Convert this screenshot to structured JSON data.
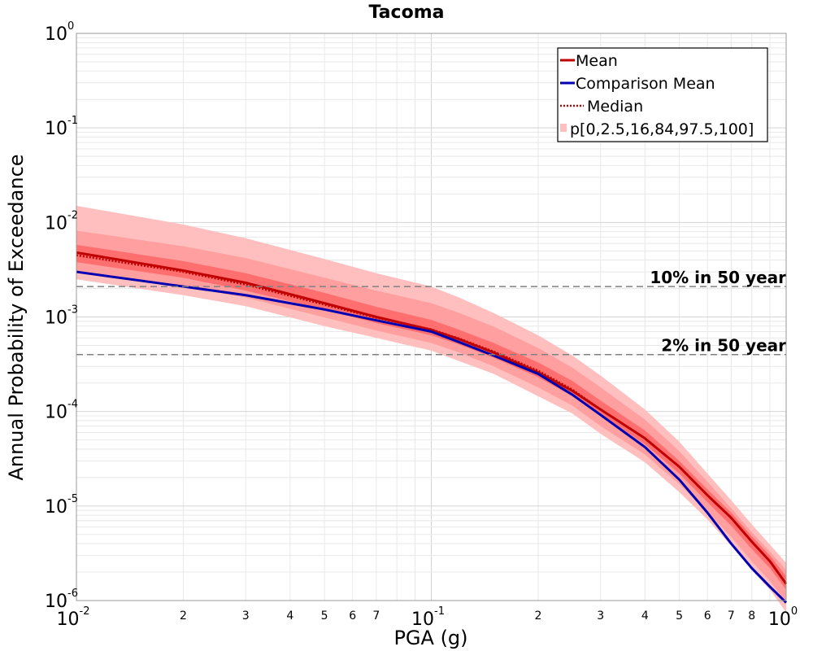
{
  "chart_data": {
    "type": "line",
    "title": "Tacoma",
    "xlabel": "PGA (g)",
    "ylabel": "Annual Probability of Exceedance",
    "x_scale": "log",
    "y_scale": "log",
    "xlim": [
      0.01,
      1.0
    ],
    "ylim": [
      1e-06,
      1.0
    ],
    "grid": true,
    "legend_position": "top-right",
    "x_major_ticks": [
      {
        "value": 0.01,
        "base": "10",
        "exp": "-2"
      },
      {
        "value": 0.1,
        "base": "10",
        "exp": "-1"
      },
      {
        "value": 1.0,
        "base": "10",
        "exp": "0"
      }
    ],
    "x_minor_ticks": [
      {
        "value": 0.02,
        "label": "2"
      },
      {
        "value": 0.03,
        "label": "3"
      },
      {
        "value": 0.04,
        "label": "4"
      },
      {
        "value": 0.05,
        "label": "5"
      },
      {
        "value": 0.06,
        "label": "6"
      },
      {
        "value": 0.07,
        "label": "7"
      },
      {
        "value": 0.2,
        "label": "2"
      },
      {
        "value": 0.3,
        "label": "3"
      },
      {
        "value": 0.4,
        "label": "4"
      },
      {
        "value": 0.5,
        "label": "5"
      },
      {
        "value": 0.6,
        "label": "6"
      },
      {
        "value": 0.7,
        "label": "7"
      },
      {
        "value": 0.8,
        "label": "8"
      }
    ],
    "y_major_ticks": [
      {
        "value": 1.0,
        "base": "10",
        "exp": "0"
      },
      {
        "value": 0.1,
        "base": "10",
        "exp": "-1"
      },
      {
        "value": 0.01,
        "base": "10",
        "exp": "-2"
      },
      {
        "value": 0.001,
        "base": "10",
        "exp": "-3"
      },
      {
        "value": 0.0001,
        "base": "10",
        "exp": "-4"
      },
      {
        "value": 1e-05,
        "base": "10",
        "exp": "-5"
      },
      {
        "value": 1e-06,
        "base": "10",
        "exp": "-6"
      }
    ],
    "x": [
      0.01,
      0.02,
      0.03,
      0.05,
      0.07,
      0.1,
      0.12,
      0.15,
      0.2,
      0.25,
      0.3,
      0.4,
      0.5,
      0.6,
      0.7,
      0.8,
      0.9,
      1.0
    ],
    "series": [
      {
        "name": "Mean",
        "color": "#c00000",
        "style": "solid",
        "values": [
          0.0048,
          0.0031,
          0.0023,
          0.0014,
          0.001,
          0.00073,
          0.00058,
          0.00042,
          0.00026,
          0.000165,
          0.000105,
          5.2e-05,
          2.6e-05,
          1.3e-05,
          7.5e-06,
          4.2e-06,
          2.6e-06,
          1.5e-06
        ]
      },
      {
        "name": "Comparison Mean",
        "color": "#0000b0",
        "style": "solid",
        "values": [
          0.003,
          0.0021,
          0.0017,
          0.0012,
          0.00092,
          0.0007,
          0.00054,
          0.00039,
          0.00025,
          0.00015,
          9.2e-05,
          4.2e-05,
          1.9e-05,
          8.5e-06,
          4e-06,
          2.2e-06,
          1.4e-06,
          9.5e-07
        ]
      },
      {
        "name": "Median",
        "color": "#c00000",
        "style": "dotted",
        "values": [
          0.0045,
          0.003,
          0.0022,
          0.00135,
          0.00098,
          0.00074,
          0.00059,
          0.00043,
          0.00027,
          0.00017,
          0.000105,
          5.2e-05,
          2.6e-05,
          1.3e-05,
          7.5e-06,
          4.2e-06,
          2.6e-06,
          1.5e-06
        ]
      }
    ],
    "bands": {
      "name": "p[0,2.5,16,84,97.5,100]",
      "outer": {
        "color": "#ffbfbf",
        "lower": [
          0.0025,
          0.0017,
          0.0013,
          0.0008,
          0.0006,
          0.00044,
          0.00034,
          0.00025,
          0.000145,
          9.5e-05,
          5.8e-05,
          2.9e-05,
          1.4e-05,
          7.2e-06,
          3.8e-06,
          2.1e-06,
          1.3e-06,
          7.5e-07
        ],
        "upper": [
          0.015,
          0.0095,
          0.0068,
          0.0041,
          0.0029,
          0.0021,
          0.0016,
          0.0011,
          0.00064,
          0.00039,
          0.00024,
          0.000105,
          4.8e-05,
          2.2e-05,
          1.15e-05,
          6.4e-06,
          3.9e-06,
          2.5e-06
        ]
      },
      "mid": {
        "color": "#ff9f9f",
        "lower": [
          0.003,
          0.0021,
          0.0016,
          0.00099,
          0.00072,
          0.00053,
          0.00042,
          0.0003,
          0.00018,
          0.000115,
          7e-05,
          3.5e-05,
          1.7e-05,
          8.6e-06,
          4.7e-06,
          2.6e-06,
          1.6e-06,
          9.5e-07
        ],
        "upper": [
          0.0082,
          0.0056,
          0.0042,
          0.0026,
          0.0019,
          0.0014,
          0.0011,
          0.00079,
          0.00047,
          0.00029,
          0.00018,
          8.2e-05,
          3.8e-05,
          1.8e-05,
          9.5e-06,
          5.3e-06,
          3.3e-06,
          2.1e-06
        ]
      },
      "inner": {
        "color": "#ff6f6f",
        "lower": [
          0.0038,
          0.0026,
          0.0019,
          0.0012,
          0.00086,
          0.00064,
          0.00051,
          0.00037,
          0.00023,
          0.000145,
          9.1e-05,
          4.5e-05,
          2.2e-05,
          1.1e-05,
          6.2e-06,
          3.5e-06,
          2.2e-06,
          1.3e-06
        ],
        "upper": [
          0.0058,
          0.0039,
          0.0029,
          0.0018,
          0.00128,
          0.00093,
          0.00073,
          0.00053,
          0.00033,
          0.00021,
          0.00013,
          6.3e-05,
          3e-05,
          1.5e-05,
          8.5e-06,
          4.8e-06,
          3e-06,
          1.8e-06
        ]
      }
    },
    "reference_lines": [
      {
        "value": 0.0021,
        "label": "10% in 50 year",
        "color": "#808080"
      },
      {
        "value": 0.0004,
        "label": "2% in 50 year",
        "color": "#808080"
      }
    ]
  }
}
